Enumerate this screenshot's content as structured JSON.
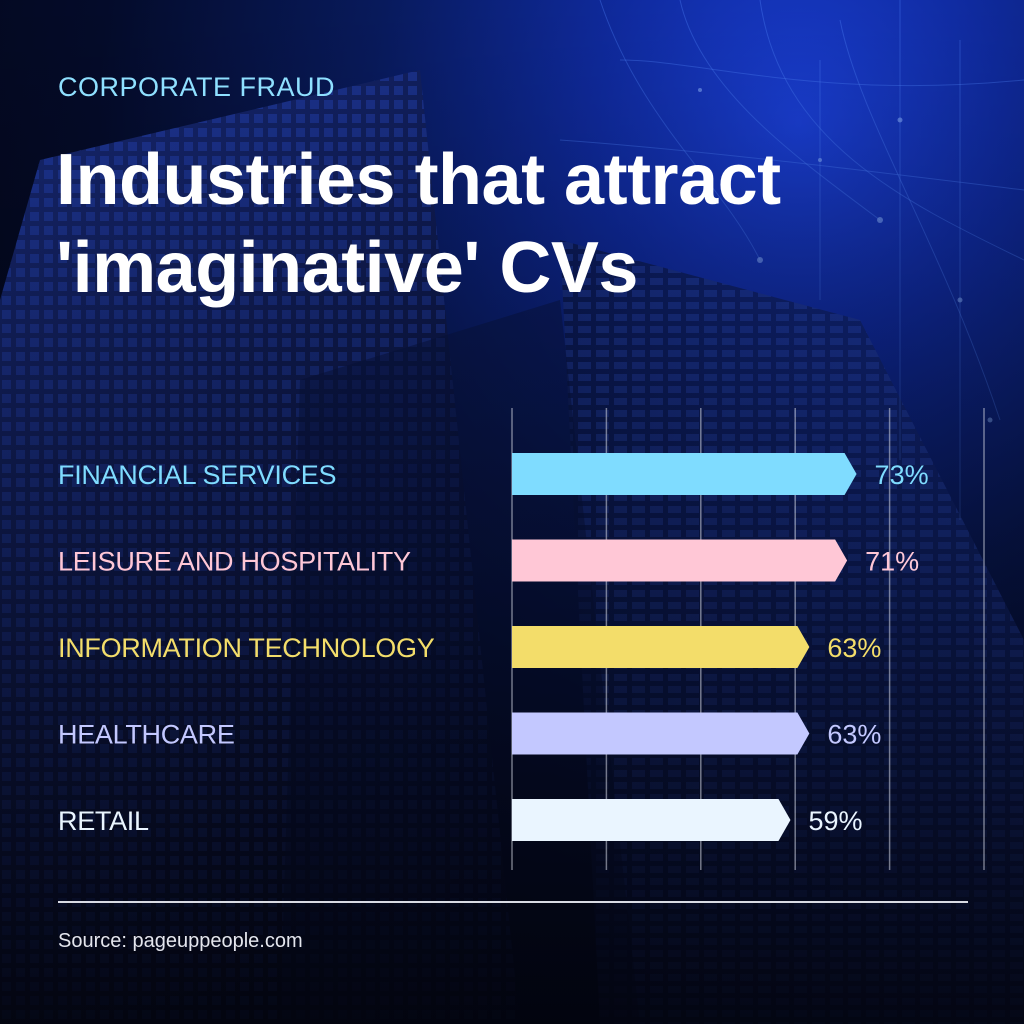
{
  "header": {
    "kicker": "CORPORATE FRAUD",
    "title_line1": "Industries that attract",
    "title_line2": "'imaginative' CVs"
  },
  "footer": {
    "source": "Source: pageuppeople.com"
  },
  "colors": {
    "background": "#05060f",
    "kicker": "#8fe0ff",
    "gridline": "#cfd3e0"
  },
  "chart_data": {
    "type": "bar",
    "orientation": "horizontal",
    "categories": [
      "FINANCIAL SERVICES",
      "LEISURE AND HOSPITALITY",
      "INFORMATION TECHNOLOGY",
      "HEALTHCARE",
      "RETAIL"
    ],
    "values": [
      73,
      71,
      63,
      63,
      59
    ],
    "value_labels": [
      "73%",
      "71%",
      "63%",
      "63%",
      "59%"
    ],
    "bar_colors": [
      "#7fdcff",
      "#ffc7d6",
      "#f3dd6a",
      "#c3c8ff",
      "#eaf5ff"
    ],
    "xlim": [
      0,
      100
    ],
    "grid": true,
    "legend": "none",
    "title": "Industries that attract 'imaginative' CVs",
    "xlabel": "",
    "ylabel": ""
  }
}
